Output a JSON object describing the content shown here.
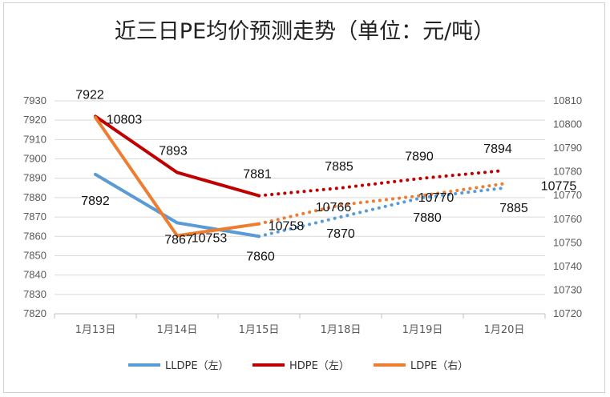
{
  "chart_data": {
    "type": "line",
    "title": "近三日PE均价预测走势（单位：元/吨）",
    "categories": [
      "1月13日",
      "1月14日",
      "1月15日",
      "1月18日",
      "1月19日",
      "1月20日"
    ],
    "left_axis": {
      "min": 7820,
      "max": 7930,
      "step": 10
    },
    "right_axis": {
      "min": 10720,
      "max": 10810,
      "step": 10
    },
    "series": [
      {
        "name": "LLDPE（左）",
        "axis": "left",
        "color": "#5b9bd5",
        "values": [
          7892,
          7867,
          7860,
          7870,
          7880,
          7885
        ],
        "labels": [
          "7892",
          "7867",
          "7860",
          "7870",
          "7880",
          "7885"
        ]
      },
      {
        "name": "HDPE（左）",
        "axis": "left",
        "color": "#c00000",
        "values": [
          7922,
          7893,
          7881,
          7885,
          7890,
          7894
        ],
        "labels": [
          "7922",
          "7893",
          "7881",
          "7885",
          "7890",
          "7894"
        ]
      },
      {
        "name": "LDPE（右）",
        "axis": "right",
        "color": "#ed7d31",
        "values": [
          10803,
          10753,
          10758,
          10766,
          10770,
          10775
        ],
        "labels": [
          "10803",
          "10753",
          "10758",
          "10766",
          "10770",
          "10775"
        ]
      }
    ],
    "actual_count": 3,
    "forecast_style": "dotted",
    "legend_position": "bottom"
  }
}
